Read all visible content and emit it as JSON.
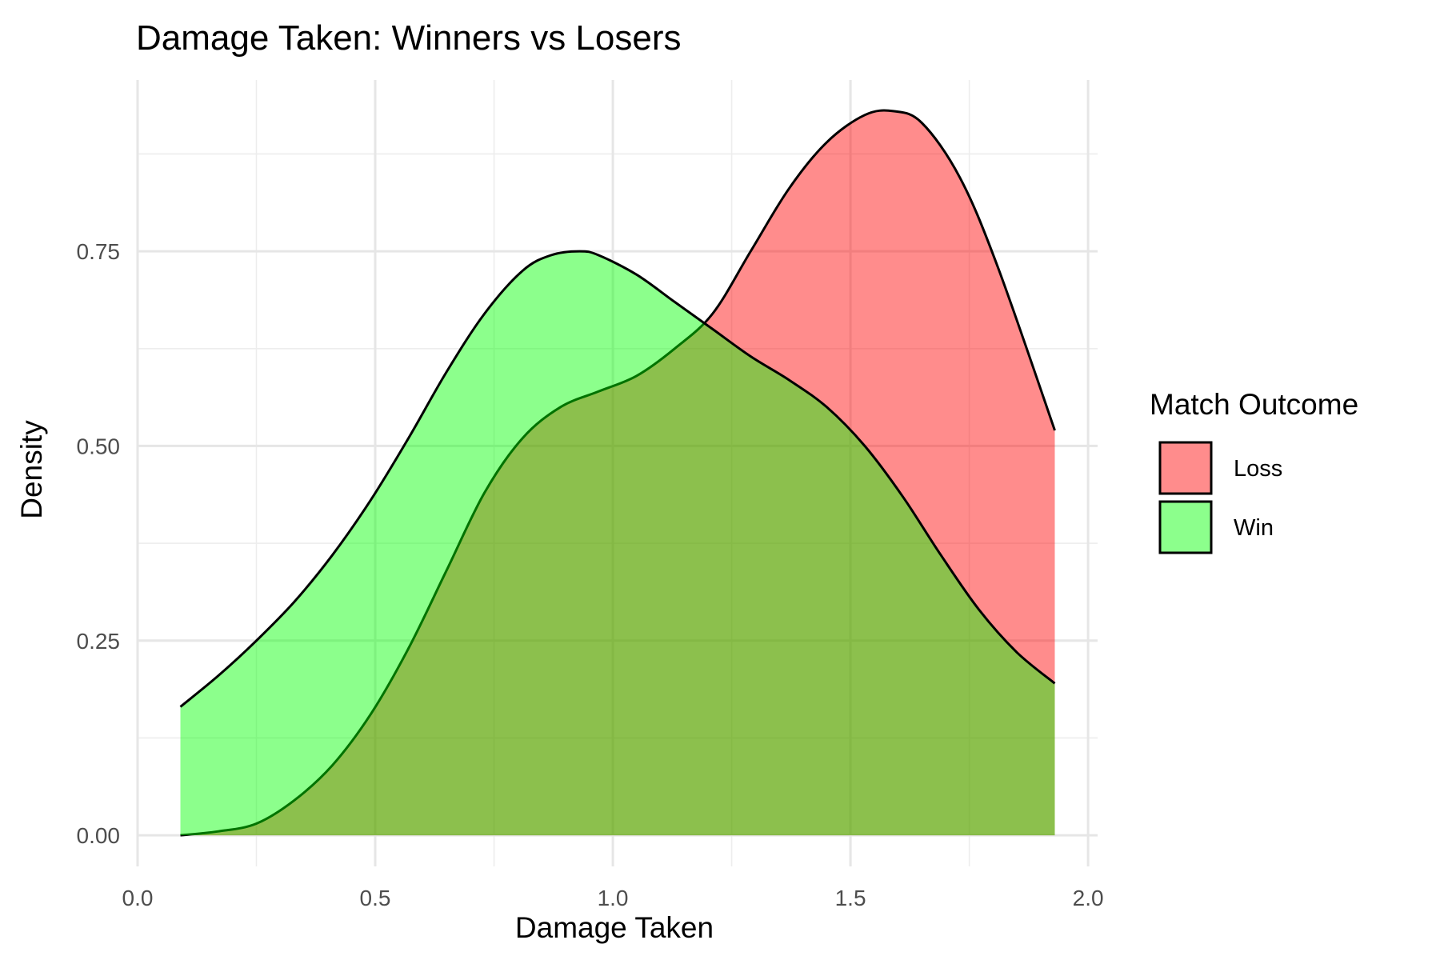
{
  "chart_data": {
    "type": "area",
    "title": "Damage Taken: Winners vs Losers",
    "xlabel": "Damage Taken",
    "ylabel": "Density",
    "xlim": [
      0.0,
      2.02
    ],
    "ylim": [
      -0.04,
      0.97
    ],
    "x_ticks": [
      "0.0",
      "0.5",
      "1.0",
      "1.5",
      "2.0"
    ],
    "x_tick_values": [
      0.0,
      0.5,
      1.0,
      1.5,
      2.0
    ],
    "y_ticks": [
      "0.00",
      "0.25",
      "0.50",
      "0.75"
    ],
    "y_tick_values": [
      0.0,
      0.25,
      0.5,
      0.75
    ],
    "grid": true,
    "legend": {
      "title": "Match Outcome",
      "position": "right"
    },
    "series": [
      {
        "name": "Loss",
        "color": "#FF0000",
        "x": [
          0.09,
          0.17,
          0.25,
          0.33,
          0.41,
          0.49,
          0.57,
          0.65,
          0.73,
          0.81,
          0.89,
          0.97,
          1.05,
          1.13,
          1.21,
          1.29,
          1.37,
          1.45,
          1.53,
          1.59,
          1.65,
          1.73,
          1.81,
          1.93
        ],
        "y": [
          0.0,
          0.005,
          0.015,
          0.045,
          0.09,
          0.155,
          0.24,
          0.34,
          0.44,
          0.51,
          0.55,
          0.57,
          0.59,
          0.625,
          0.67,
          0.75,
          0.83,
          0.89,
          0.925,
          0.93,
          0.915,
          0.845,
          0.73,
          0.52
        ]
      },
      {
        "name": "Win",
        "color": "#00FF00",
        "x": [
          0.09,
          0.17,
          0.25,
          0.33,
          0.41,
          0.49,
          0.57,
          0.65,
          0.73,
          0.81,
          0.87,
          0.93,
          0.97,
          1.05,
          1.13,
          1.21,
          1.29,
          1.37,
          1.45,
          1.53,
          1.61,
          1.69,
          1.77,
          1.85,
          1.93
        ],
        "y": [
          0.165,
          0.205,
          0.25,
          0.3,
          0.36,
          0.43,
          0.51,
          0.595,
          0.67,
          0.725,
          0.745,
          0.75,
          0.745,
          0.72,
          0.685,
          0.65,
          0.615,
          0.585,
          0.55,
          0.5,
          0.435,
          0.36,
          0.29,
          0.235,
          0.195
        ]
      }
    ]
  }
}
